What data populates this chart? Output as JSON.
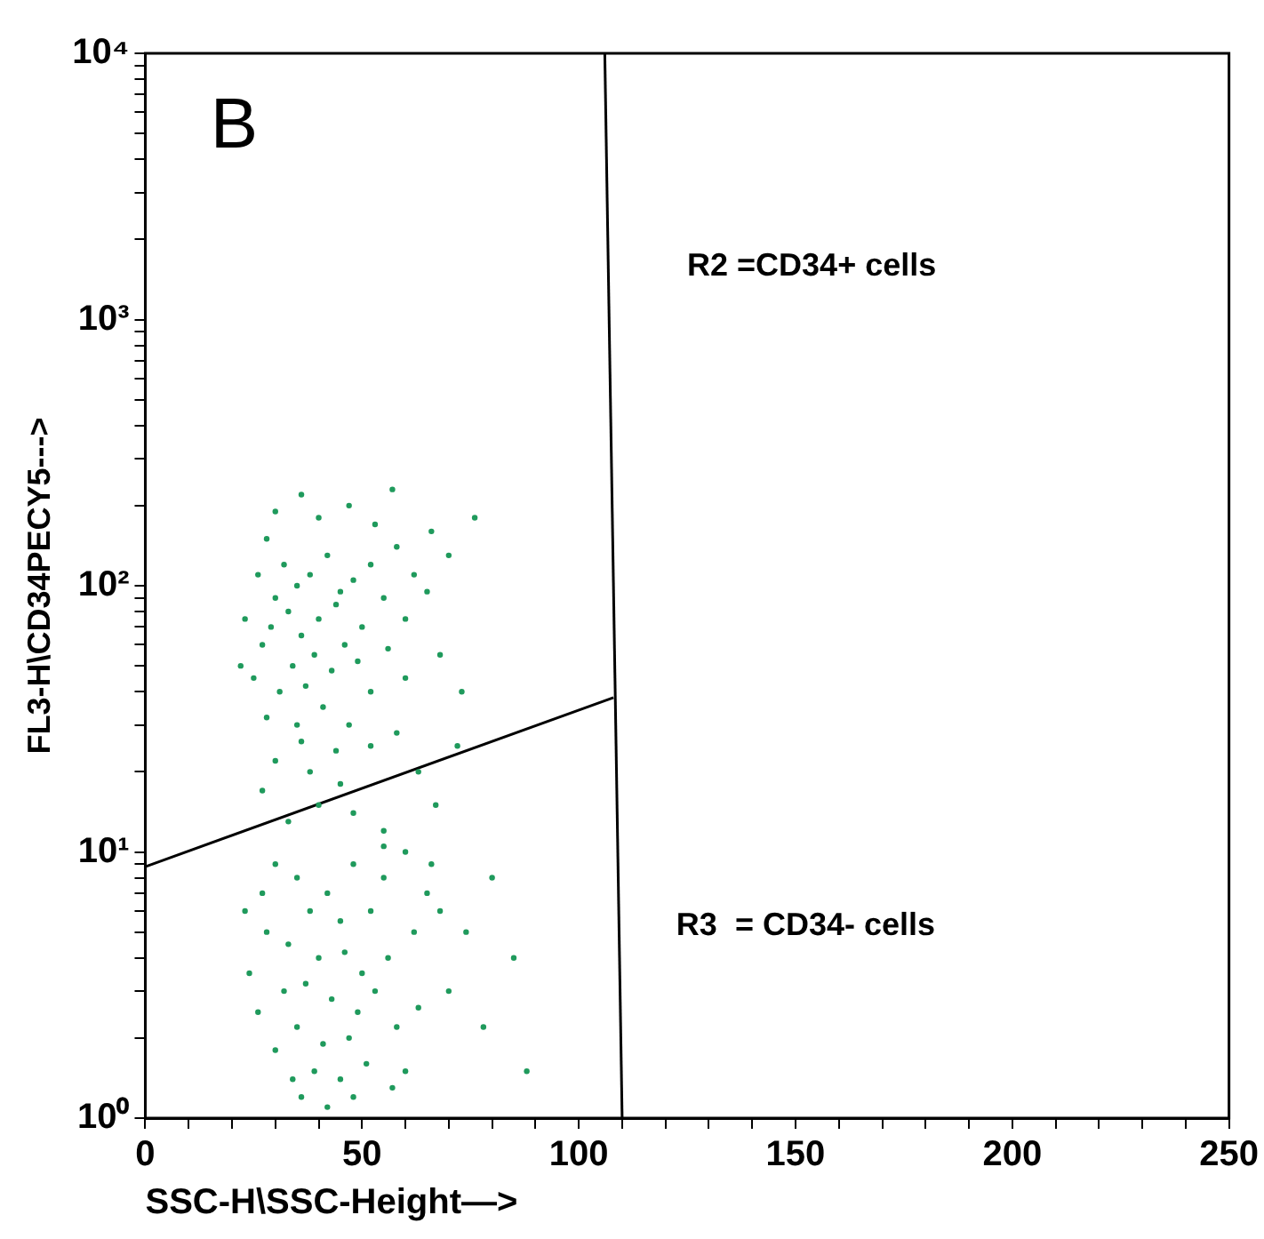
{
  "chart_data": {
    "type": "scatter",
    "xlabel": "SSC-H\\SSC-Height—>",
    "ylabel": "FL3-H\\CD34PECY5--->",
    "annotations": [
      "B",
      "R2 =CD34+ cells",
      "R3  = CD34- cells"
    ],
    "xlim": [
      0,
      250
    ],
    "ylim": [
      1,
      10000
    ],
    "log": "y",
    "grid": false,
    "xticks": [
      0,
      {
        "value": 10,
        "label": null
      },
      {
        "value": 20,
        "label": null
      },
      {
        "value": 30,
        "label": null
      },
      {
        "value": 40,
        "label": null
      },
      50,
      {
        "value": 60,
        "label": null
      },
      {
        "value": 70,
        "label": null
      },
      {
        "value": 80,
        "label": null
      },
      {
        "value": 90,
        "label": null
      },
      100,
      {
        "value": 110,
        "label": null
      },
      {
        "value": 120,
        "label": null
      },
      {
        "value": 130,
        "label": null
      },
      {
        "value": 140,
        "label": null
      },
      150,
      {
        "value": 160,
        "label": null
      },
      {
        "value": 170,
        "label": null
      },
      {
        "value": 180,
        "label": null
      },
      {
        "value": 190,
        "label": null
      },
      200,
      {
        "value": 210,
        "label": null
      },
      {
        "value": 220,
        "label": null
      },
      {
        "value": 230,
        "label": null
      },
      {
        "value": 240,
        "label": null
      },
      250
    ],
    "yticks": [
      {
        "value": 1,
        "label": "10⁰"
      },
      {
        "value": 2,
        "label": null
      },
      {
        "value": 3,
        "label": null
      },
      {
        "value": 4,
        "label": null
      },
      {
        "value": 5,
        "label": null
      },
      {
        "value": 6,
        "label": null
      },
      {
        "value": 7,
        "label": null
      },
      {
        "value": 8,
        "label": null
      },
      {
        "value": 9,
        "label": null
      },
      {
        "value": 10,
        "label": "10¹"
      },
      {
        "value": 20,
        "label": null
      },
      {
        "value": 30,
        "label": null
      },
      {
        "value": 40,
        "label": null
      },
      {
        "value": 50,
        "label": null
      },
      {
        "value": 60,
        "label": null
      },
      {
        "value": 70,
        "label": null
      },
      {
        "value": 80,
        "label": null
      },
      {
        "value": 90,
        "label": null
      },
      {
        "value": 100,
        "label": "10²"
      },
      {
        "value": 200,
        "label": null
      },
      {
        "value": 300,
        "label": null
      },
      {
        "value": 400,
        "label": null
      },
      {
        "value": 500,
        "label": null
      },
      {
        "value": 600,
        "label": null
      },
      {
        "value": 700,
        "label": null
      },
      {
        "value": 800,
        "label": null
      },
      {
        "value": 900,
        "label": null
      },
      {
        "value": 1000,
        "label": "10³"
      },
      {
        "value": 2000,
        "label": null
      },
      {
        "value": 3000,
        "label": null
      },
      {
        "value": 4000,
        "label": null
      },
      {
        "value": 5000,
        "label": null
      },
      {
        "value": 6000,
        "label": null
      },
      {
        "value": 7000,
        "label": null
      },
      {
        "value": 8000,
        "label": null
      },
      {
        "value": 9000,
        "label": null
      },
      {
        "value": 10000,
        "label": "10⁴"
      }
    ],
    "series": [
      {
        "marker": "circle",
        "color": "#1f9a5c",
        "x": [
          28,
          32,
          35,
          30,
          38,
          42,
          45,
          33,
          29,
          36,
          40,
          44,
          48,
          52,
          55,
          50,
          46,
          39,
          34,
          27,
          25,
          31,
          37,
          43,
          49,
          56,
          60,
          58,
          62,
          65,
          53,
          47,
          40,
          30,
          36,
          57,
          66,
          70,
          76,
          26,
          23,
          22,
          41,
          47,
          52,
          60,
          68,
          73,
          35,
          28,
          30,
          38,
          45,
          52,
          58,
          63,
          40,
          48,
          55,
          33,
          27,
          67,
          72,
          44,
          36,
          30,
          35,
          42,
          48,
          55,
          60,
          65,
          38,
          45,
          52,
          28,
          33,
          40,
          46,
          50,
          56,
          62,
          68,
          74,
          80,
          85,
          32,
          37,
          43,
          49,
          53,
          58,
          35,
          41,
          47,
          30,
          26,
          24,
          39,
          45,
          51,
          57,
          36,
          42,
          48,
          34,
          63,
          70,
          78,
          88,
          60,
          55,
          66,
          27,
          23
        ],
        "values": [
          150,
          120,
          100,
          90,
          110,
          130,
          95,
          80,
          70,
          65,
          75,
          85,
          105,
          120,
          90,
          70,
          60,
          55,
          50,
          60,
          45,
          40,
          42,
          48,
          52,
          58,
          75,
          140,
          110,
          95,
          170,
          200,
          180,
          190,
          220,
          230,
          160,
          130,
          180,
          110,
          75,
          50,
          35,
          30,
          40,
          45,
          55,
          40,
          30,
          32,
          22,
          20,
          18,
          25,
          28,
          20,
          15,
          14,
          12,
          13,
          17,
          15,
          25,
          24,
          26,
          9,
          8,
          7,
          9,
          8,
          10,
          7,
          6,
          5.5,
          6,
          5,
          4.5,
          4,
          4.2,
          3.5,
          4,
          5,
          6,
          5,
          8,
          4,
          3,
          3.2,
          2.8,
          2.5,
          3,
          2.2,
          2.2,
          1.9,
          2,
          1.8,
          2.5,
          3.5,
          1.5,
          1.4,
          1.6,
          1.3,
          1.2,
          1.1,
          1.2,
          1.4,
          2.6,
          3,
          2.2,
          1.5,
          1.5,
          10.5,
          9,
          7,
          6
        ]
      },
      {
        "type": "line",
        "marker": "none",
        "color": "#000000",
        "x": [
          0,
          108
        ],
        "values": [
          8.8,
          38
        ]
      },
      {
        "type": "line",
        "marker": "none",
        "color": "#000000",
        "x": [
          106,
          110
        ],
        "values": [
          10000,
          1
        ]
      }
    ]
  }
}
